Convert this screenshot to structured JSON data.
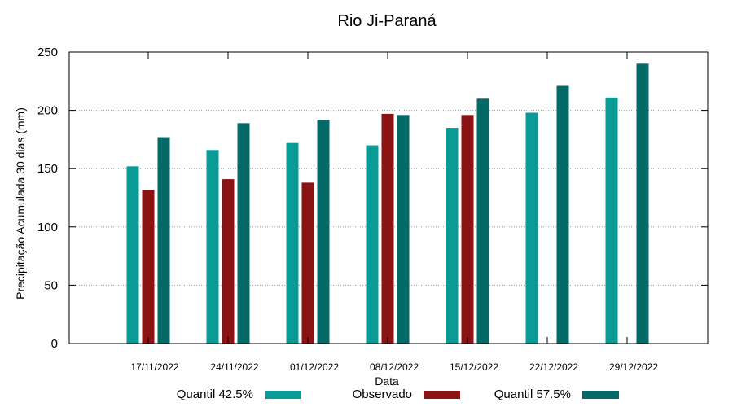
{
  "chart_data": {
    "type": "bar",
    "title": "Rio Ji-Paraná",
    "xlabel": "Data",
    "ylabel": "Precipitação Acumulada 30 dias (mm)",
    "ylim": [
      0,
      250
    ],
    "yticks": [
      0,
      50,
      100,
      150,
      200,
      250
    ],
    "grid": true,
    "legend_position": "bottom",
    "categories": [
      "17/11/2022",
      "24/11/2022",
      "01/12/2022",
      "08/12/2022",
      "15/12/2022",
      "22/12/2022",
      "29/12/2022"
    ],
    "series": [
      {
        "name": "Quantil 42.5%",
        "color": "#0a9b96",
        "values": [
          152,
          166,
          172,
          170,
          185,
          198,
          211
        ]
      },
      {
        "name": "Observado",
        "color": "#8b1313",
        "values": [
          132,
          141,
          138,
          197,
          196,
          null,
          null
        ]
      },
      {
        "name": "Quantil 57.5%",
        "color": "#036a67",
        "values": [
          177,
          189,
          192,
          196,
          210,
          221,
          240
        ]
      }
    ]
  }
}
